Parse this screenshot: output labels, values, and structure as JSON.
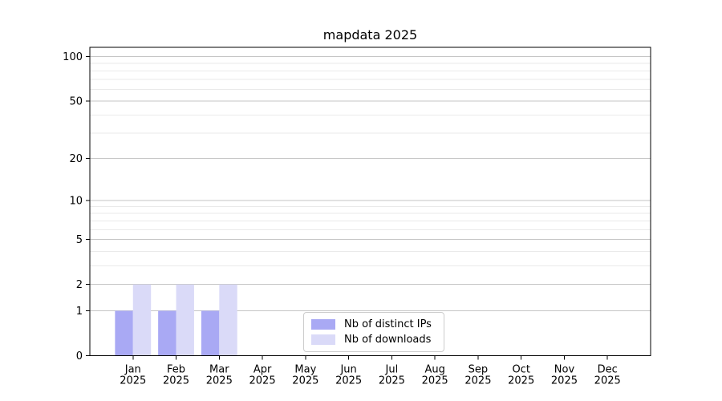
{
  "chart_data": {
    "type": "bar",
    "title": "mapdata 2025",
    "xlabel": "",
    "ylabel": "",
    "categories": [
      {
        "month": "Jan",
        "year": "2025"
      },
      {
        "month": "Feb",
        "year": "2025"
      },
      {
        "month": "Mar",
        "year": "2025"
      },
      {
        "month": "Apr",
        "year": "2025"
      },
      {
        "month": "May",
        "year": "2025"
      },
      {
        "month": "Jun",
        "year": "2025"
      },
      {
        "month": "Jul",
        "year": "2025"
      },
      {
        "month": "Aug",
        "year": "2025"
      },
      {
        "month": "Sep",
        "year": "2025"
      },
      {
        "month": "Oct",
        "year": "2025"
      },
      {
        "month": "Nov",
        "year": "2025"
      },
      {
        "month": "Dec",
        "year": "2025"
      }
    ],
    "series": [
      {
        "name": "Nb of distinct IPs",
        "color": "#a9a9f4",
        "values": [
          1,
          1,
          1,
          0,
          0,
          0,
          0,
          0,
          0,
          0,
          0,
          0
        ]
      },
      {
        "name": "Nb of downloads",
        "color": "#dadaf8",
        "values": [
          2,
          2,
          2,
          0,
          0,
          0,
          0,
          0,
          0,
          0,
          0,
          0
        ]
      }
    ],
    "y_scale": "log1p",
    "ylim": [
      0,
      115.6
    ],
    "y_major_ticks": [
      0,
      1,
      2,
      5,
      10,
      20,
      50,
      100
    ],
    "y_minor_ticks": [
      3,
      4,
      6,
      7,
      8,
      9,
      30,
      40,
      60,
      70,
      80,
      90
    ],
    "grid": "horizontal",
    "legend_position": "bottom-center",
    "colors": {
      "axis": "#000000",
      "text": "#000000",
      "grid_major": "#c6c6c6",
      "grid_minor": "#eaeaea",
      "background": "#ffffff"
    }
  }
}
